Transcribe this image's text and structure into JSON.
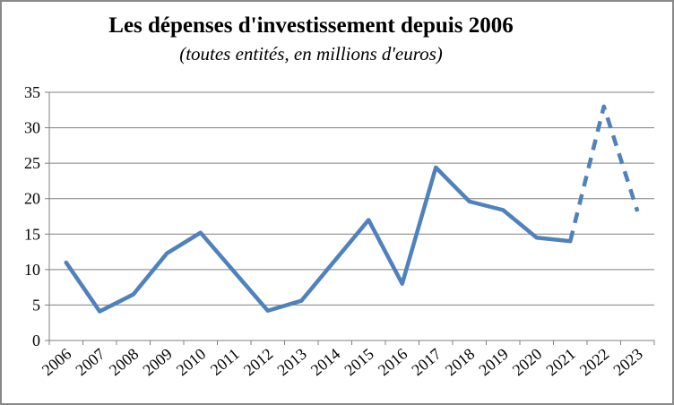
{
  "header": {
    "title": "Les dépenses d'investissement depuis 2006",
    "subtitle": "(toutes entités, en millions d'euros)"
  },
  "colors": {
    "line_blue": "#4F81BD",
    "gridline_gray": "#808080",
    "axis_gray": "#808080",
    "frame_border": "#898989",
    "background": "#FFFFFF",
    "text": "#000000"
  },
  "chart_data": {
    "type": "line",
    "title": "Les dépenses d'investissement depuis 2006",
    "subtitle": "(toutes entités, en millions d'euros)",
    "xlabel": "",
    "ylabel": "",
    "categories": [
      "2006",
      "2007",
      "2008",
      "2009",
      "2010",
      "2011",
      "2012",
      "2013",
      "2014",
      "2015",
      "2016",
      "2017",
      "2018",
      "2019",
      "2020",
      "2021",
      "2022",
      "2023"
    ],
    "series": [
      {
        "name": "depenses-realisees",
        "style": "solid",
        "color": "#4F81BD",
        "start_index": 0,
        "values": [
          11,
          4.1,
          6.5,
          12.3,
          15.2,
          9.7,
          4.2,
          5.6,
          11.3,
          17,
          8,
          24.4,
          19.6,
          18.4,
          14.5,
          14
        ]
      },
      {
        "name": "depenses-previsionnelles",
        "style": "dashed",
        "color": "#4F81BD",
        "start_index": 15,
        "values": [
          14,
          33,
          18.2
        ]
      }
    ],
    "ylim": [
      0,
      35
    ],
    "yticks": [
      0,
      5,
      10,
      15,
      20,
      25,
      30,
      35
    ],
    "grid": true,
    "legend": "none",
    "x_label_rotation_deg": -40
  }
}
